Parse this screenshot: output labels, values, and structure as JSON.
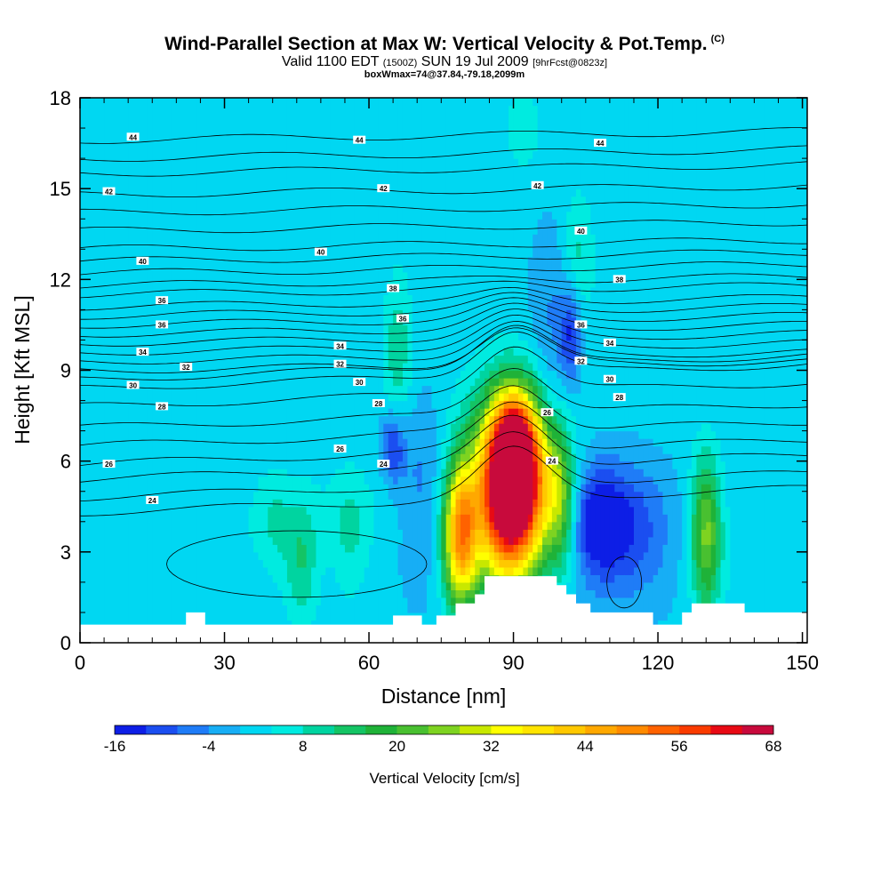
{
  "header": {
    "title": "Wind-Parallel Section at Max W: Vertical Velocity & Pot.Temp.",
    "copyright": "(C)",
    "valid_prefix": "Valid 1100 EDT",
    "valid_utc": "(1500Z)",
    "valid_date": "SUN 19 Jul 2009",
    "forecast": "[9hrFcst@0823z]",
    "box_info": "boxWmax=74@37.84,-79.18,2099m"
  },
  "chart_data": {
    "type": "heatmap",
    "xlabel": "Distance [nm]",
    "ylabel": "Height [Kft MSL]",
    "xlim": [
      0,
      151
    ],
    "ylim": [
      0,
      18
    ],
    "xticks": [
      0,
      30,
      60,
      90,
      120,
      150
    ],
    "yticks": [
      0,
      3,
      6,
      9,
      12,
      15,
      18
    ],
    "colorbar": {
      "label": "Vertical Velocity [cm/s]",
      "tick_labels": [
        -16,
        -4,
        8,
        20,
        32,
        44,
        56,
        68
      ],
      "bins": [
        -16,
        -12,
        -8,
        -4,
        0,
        4,
        8,
        12,
        16,
        20,
        24,
        28,
        32,
        36,
        40,
        44,
        48,
        52,
        56,
        60,
        64,
        68
      ],
      "colors": [
        "#0d1ee6",
        "#1b4ef0",
        "#1f7cf7",
        "#17aef5",
        "#00d7f2",
        "#00ebe0",
        "#00d4a0",
        "#14c464",
        "#1fb238",
        "#49c030",
        "#7ed321",
        "#c8e800",
        "#ffff00",
        "#ffe400",
        "#ffc800",
        "#ffa800",
        "#ff8a00",
        "#ff6200",
        "#fa3b00",
        "#e80a14",
        "#c80a3c"
      ]
    },
    "w_max": 74,
    "theta_contour_labels": [
      {
        "value": "44",
        "x": 11,
        "y": 16.7
      },
      {
        "value": "44",
        "x": 58,
        "y": 16.6
      },
      {
        "value": "44",
        "x": 108,
        "y": 16.5
      },
      {
        "value": "42",
        "x": 6,
        "y": 14.9
      },
      {
        "value": "42",
        "x": 63,
        "y": 15.0
      },
      {
        "value": "42",
        "x": 95,
        "y": 15.1
      },
      {
        "value": "40",
        "x": 13,
        "y": 12.6
      },
      {
        "value": "40",
        "x": 50,
        "y": 12.9
      },
      {
        "value": "40",
        "x": 104,
        "y": 13.6
      },
      {
        "value": "38",
        "x": 65,
        "y": 11.7
      },
      {
        "value": "38",
        "x": 112,
        "y": 12.0
      },
      {
        "value": "36",
        "x": 17,
        "y": 11.3
      },
      {
        "value": "36",
        "x": 17,
        "y": 10.5
      },
      {
        "value": "36",
        "x": 67,
        "y": 10.7
      },
      {
        "value": "36",
        "x": 104,
        "y": 10.5
      },
      {
        "value": "34",
        "x": 13,
        "y": 9.6
      },
      {
        "value": "34",
        "x": 54,
        "y": 9.8
      },
      {
        "value": "34",
        "x": 110,
        "y": 9.9
      },
      {
        "value": "32",
        "x": 22,
        "y": 9.1
      },
      {
        "value": "32",
        "x": 54,
        "y": 9.2
      },
      {
        "value": "32",
        "x": 104,
        "y": 9.3
      },
      {
        "value": "30",
        "x": 11,
        "y": 8.5
      },
      {
        "value": "30",
        "x": 58,
        "y": 8.6
      },
      {
        "value": "30",
        "x": 110,
        "y": 8.7
      },
      {
        "value": "28",
        "x": 17,
        "y": 7.8
      },
      {
        "value": "28",
        "x": 62,
        "y": 7.9
      },
      {
        "value": "28",
        "x": 112,
        "y": 8.1
      },
      {
        "value": "26",
        "x": 6,
        "y": 5.9
      },
      {
        "value": "26",
        "x": 54,
        "y": 6.4
      },
      {
        "value": "26",
        "x": 97,
        "y": 7.6
      },
      {
        "value": "24",
        "x": 15,
        "y": 4.7
      },
      {
        "value": "24",
        "x": 63,
        "y": 5.9
      },
      {
        "value": "24",
        "x": 98,
        "y": 6.0
      }
    ]
  }
}
